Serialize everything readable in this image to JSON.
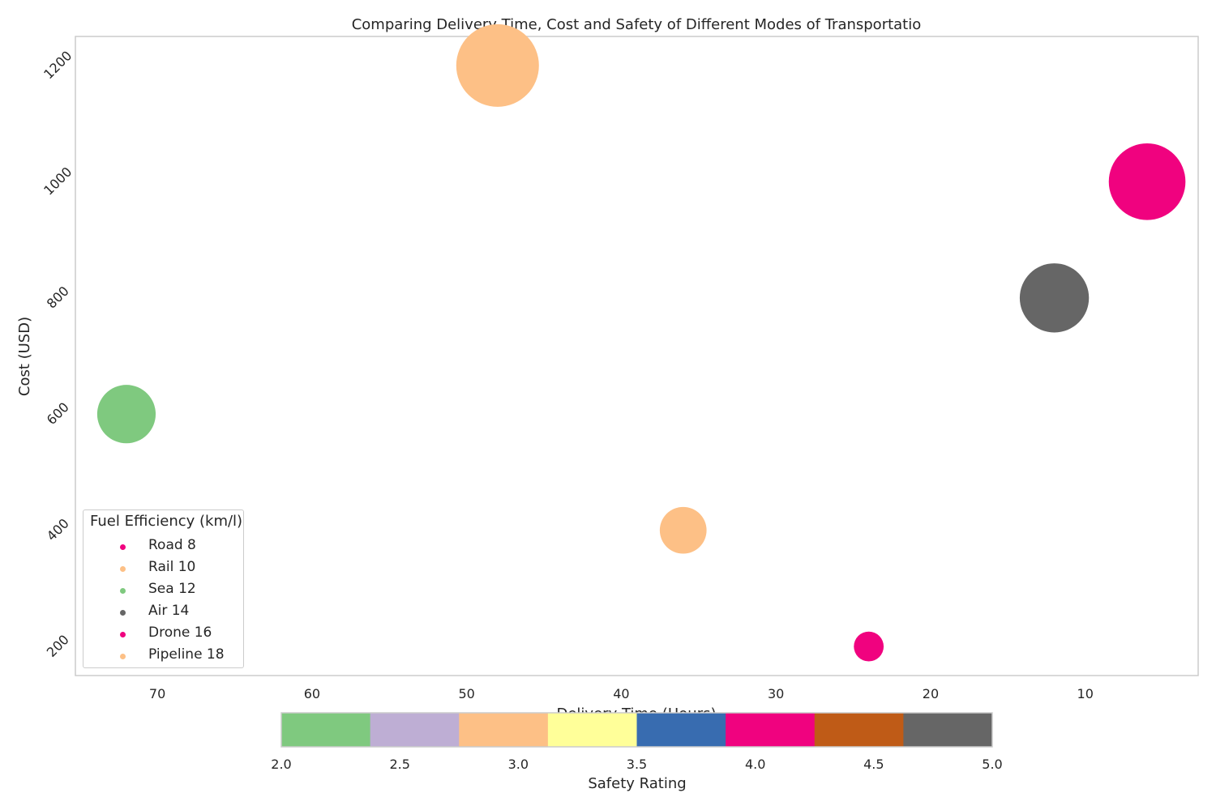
{
  "chart_data": {
    "type": "scatter",
    "title": "Comparing Delivery Time, Cost and Safety of Different Modes of Transportatio",
    "xlabel": "Delivery Time (Hours)",
    "ylabel": "Cost (USD)",
    "x_inverted": true,
    "xlim": [
      75.3,
      2.7
    ],
    "ylim": [
      150,
      1250
    ],
    "x_ticks": [
      70,
      60,
      50,
      40,
      30,
      20,
      10
    ],
    "y_ticks": [
      200,
      400,
      600,
      800,
      1000,
      1200
    ],
    "grid": false,
    "legend_title": "Fuel Efficiency (km/l)",
    "legend_position": "lower-left",
    "points": [
      {
        "label": "Road 8",
        "x": 24,
        "y": 200,
        "safety_rating": 4.0,
        "color": "#f0027f",
        "relative_size": 0.13
      },
      {
        "label": "Rail 10",
        "x": 48,
        "y": 1200,
        "safety_rating": 3.0,
        "color": "#fdc086",
        "relative_size": 1.0
      },
      {
        "label": "Sea 12",
        "x": 72,
        "y": 600,
        "safety_rating": 2.0,
        "color": "#7fc97f",
        "relative_size": 0.5
      },
      {
        "label": "Air 14",
        "x": 12,
        "y": 800,
        "safety_rating": 5.0,
        "color": "#666666",
        "relative_size": 0.7
      },
      {
        "label": "Drone 16",
        "x": 6,
        "y": 1000,
        "safety_rating": 4.0,
        "color": "#f0027f",
        "relative_size": 0.86
      },
      {
        "label": "Pipeline 18",
        "x": 36,
        "y": 400,
        "safety_rating": 3.0,
        "color": "#fdc086",
        "relative_size": 0.32
      }
    ],
    "colorbar": {
      "label": "Safety Rating",
      "range": [
        2.0,
        5.0
      ],
      "ticks": [
        "2.0",
        "2.5",
        "3.0",
        "3.5",
        "4.0",
        "4.5",
        "5.0"
      ],
      "colors": [
        "#7fc97f",
        "#beaed4",
        "#fdc086",
        "#ffff99",
        "#386cb0",
        "#f0027f",
        "#bf5b17",
        "#666666"
      ]
    }
  }
}
